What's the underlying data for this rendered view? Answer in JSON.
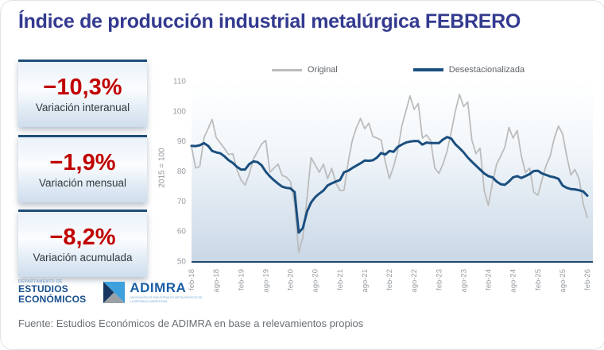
{
  "title": "Índice de producción industrial metalúrgica FEBRERO",
  "stats": [
    {
      "value": "−10,3%",
      "label": "Variación interanual"
    },
    {
      "value": "−1,9%",
      "label": "Variación mensual"
    },
    {
      "value": "−8,2%",
      "label": "Variación acumulada"
    }
  ],
  "chart_data": {
    "type": "line",
    "y_axis_title": "2015 = 100",
    "ylim": [
      50,
      110
    ],
    "yticks": [
      50,
      60,
      70,
      80,
      90,
      100,
      110
    ],
    "tick_every": 6,
    "x_tick_labels": [
      "feb-18",
      "ago-18",
      "feb-19",
      "ago-19",
      "feb-20",
      "ago-20",
      "feb-21",
      "ago-21",
      "feb-22",
      "ago-22",
      "feb-23",
      "ago-23",
      "feb-24",
      "ago-24",
      "feb-25",
      "ago-25",
      "feb-26"
    ],
    "grid": false,
    "legend_position": "top-center",
    "series": [
      {
        "name": "Original",
        "color": "#bcbcbc",
        "width": 1.8,
        "values": [
          88.0,
          81.0,
          81.5,
          91.0,
          94.1,
          97.2,
          91.1,
          89.3,
          87.5,
          85.5,
          85.8,
          80.5,
          77.0,
          75.3,
          79.0,
          84.0,
          86.5,
          89.0,
          90.2,
          79.6,
          81.0,
          82.3,
          78.5,
          78.0,
          76.5,
          69.0,
          53.0,
          58.0,
          71.0,
          84.5,
          82.0,
          79.6,
          82.3,
          77.4,
          80.9,
          76.0,
          73.5,
          73.6,
          83.0,
          90.2,
          94.5,
          97.5,
          94.1,
          95.9,
          91.5,
          91.0,
          90.3,
          83.1,
          77.5,
          81.5,
          86.7,
          95.0,
          100.0,
          105.0,
          100.5,
          102.5,
          91.0,
          92.0,
          90.2,
          81.0,
          79.2,
          82.3,
          86.7,
          93.0,
          100.0,
          105.5,
          101.5,
          103.0,
          90.2,
          85.8,
          87.6,
          73.5,
          68.5,
          76.1,
          82.3,
          85.0,
          88.0,
          94.5,
          91.0,
          93.5,
          85.0,
          79.5,
          81.0,
          73.0,
          71.9,
          77.0,
          81.8,
          85.0,
          91.0,
          95.0,
          92.4,
          85.0,
          78.7,
          80.5,
          77.4,
          69.1,
          64.5
        ]
      },
      {
        "name": "Desestacionalizada",
        "color": "#1a4e7e",
        "width": 3,
        "values": [
          88.4,
          88.3,
          88.6,
          89.3,
          88.4,
          86.7,
          86.2,
          85.9,
          84.9,
          83.6,
          82.7,
          81.4,
          80.5,
          80.5,
          82.3,
          83.2,
          83.0,
          81.9,
          79.8,
          78.2,
          76.9,
          75.8,
          74.8,
          74.4,
          74.2,
          73.0,
          59.5,
          61.0,
          66.5,
          69.5,
          71.3,
          72.5,
          73.5,
          75.2,
          75.9,
          76.5,
          77.0,
          79.6,
          80.1,
          81.0,
          81.8,
          82.6,
          83.5,
          83.4,
          83.6,
          84.5,
          86.0,
          85.5,
          86.7,
          86.4,
          88.0,
          88.8,
          89.5,
          89.8,
          90.0,
          90.0,
          88.8,
          89.5,
          89.3,
          89.3,
          89.3,
          90.5,
          91.3,
          90.8,
          88.9,
          87.6,
          86.2,
          84.5,
          83.1,
          81.8,
          80.5,
          79.2,
          78.3,
          77.9,
          76.5,
          75.6,
          75.4,
          76.5,
          77.9,
          78.3,
          77.7,
          78.3,
          79.0,
          80.0,
          80.1,
          79.2,
          78.7,
          78.2,
          77.9,
          77.4,
          75.2,
          74.4,
          74.0,
          73.9,
          73.6,
          73.2,
          71.8
        ]
      }
    ]
  },
  "branding": {
    "dept_line1": "DEPARTAMENTO DE",
    "dept_line2": "ESTUDIOS",
    "dept_line3": "ECONÓMICOS",
    "adimra_name": "ADIMRA",
    "adimra_tagline": "ASOCIACIÓN DE INDUSTRIALES METALÚRGICOS DE LA REPÚBLICA ARGENTINA"
  },
  "footer": "Fuente: Estudios Económicos de ADIMRA en base a relevamientos propios",
  "colors": {
    "title": "#333a8f",
    "stat_value": "#c00000",
    "stat_border": "#1f4e79",
    "axis_line": "#24466e",
    "tick_label": "#989ca1",
    "plot_gradient_bottom": "#c9d7e6"
  }
}
